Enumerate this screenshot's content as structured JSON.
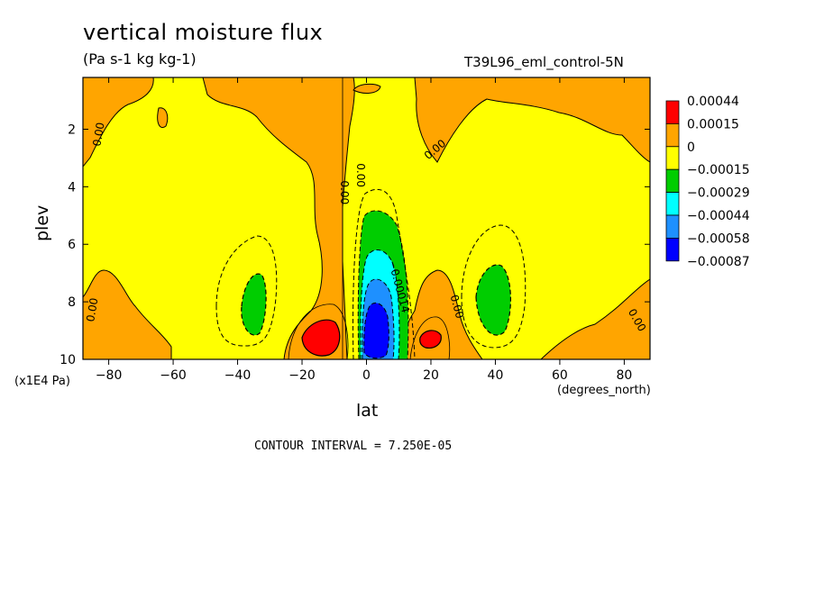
{
  "chart_data": {
    "type": "heatmap",
    "title": "vertical moisture flux",
    "subtitle": "(Pa s-1 kg kg-1)",
    "run_label": "T39L96_eml_control-5N",
    "xlabel": "lat",
    "xunits": "(degrees_north)",
    "ylabel": "plev",
    "yunits": "(x1E4 Pa)",
    "contour_interval_text": "CONTOUR INTERVAL = 7.250E-05",
    "xlim": [
      -88,
      88
    ],
    "ylim": [
      10,
      0.2
    ],
    "y_inverted": true,
    "x_ticks": [
      -80,
      -60,
      -40,
      -20,
      0,
      20,
      40,
      60,
      80
    ],
    "y_ticks": [
      2,
      4,
      6,
      8,
      10
    ],
    "legend": {
      "placement": "right",
      "labels": [
        "0.00044",
        "0.00015",
        "0",
        "-0.00015",
        "-0.00029",
        "-0.00044",
        "-0.00058",
        "-0.00087"
      ],
      "colors": [
        "#ff0000",
        "#ffa500",
        "#ffff00",
        "#00cd00",
        "#00ffff",
        "#1e90ff",
        "#0000ff"
      ]
    },
    "contour_labels": [
      {
        "text": "0.00",
        "x": -82,
        "y": 2.2,
        "angle": -80
      },
      {
        "text": "0.00",
        "x": -8,
        "y": 4.2,
        "angle": 90
      },
      {
        "text": "0.00",
        "x": -3,
        "y": 3.6,
        "angle": 90
      },
      {
        "text": "0.00",
        "x": 22,
        "y": 2.8,
        "angle": -40
      },
      {
        "text": "-0.00014",
        "x": 9,
        "y": 7.5,
        "angle": 75
      },
      {
        "text": "0.00",
        "x": -84,
        "y": 8.3,
        "angle": -80
      },
      {
        "text": "0.00",
        "x": 27,
        "y": 8.2,
        "angle": 75
      },
      {
        "text": "0.00",
        "x": 83,
        "y": 8.7,
        "angle": 60
      }
    ],
    "features": [
      {
        "level": "positive",
        "color": "#ffa500",
        "description": "orange regions above zero"
      },
      {
        "level": "max",
        "color": "#ff0000",
        "near": {
          "x": -14,
          "y": 9.3
        }
      },
      {
        "level": "max",
        "color": "#ff0000",
        "near": {
          "x": 20,
          "y": 9.2
        }
      },
      {
        "level": "min",
        "color": "#0000ff",
        "near": {
          "x": 3,
          "y": 8.8
        }
      },
      {
        "level": "negative",
        "color": "#00cd00",
        "near": {
          "x": -36,
          "y": 8.2
        }
      },
      {
        "level": "negative",
        "color": "#00cd00",
        "near": {
          "x": 39,
          "y": 7.6
        }
      }
    ]
  }
}
